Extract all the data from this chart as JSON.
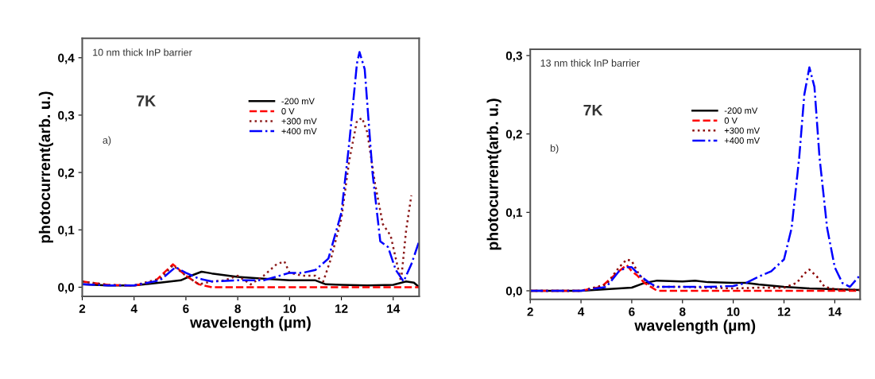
{
  "chart_data": [
    {
      "type": "line",
      "xlabel": "wavelength (µm)",
      "ylabel": "photocurrent(arb. u.)",
      "xlim": [
        2,
        15
      ],
      "ylim": [
        -0.016,
        0.434
      ],
      "xticks": [
        2,
        4,
        6,
        8,
        10,
        12,
        14
      ],
      "yticks": [
        {
          "value": 0.0,
          "label": "0,0"
        },
        {
          "value": 0.1,
          "label": "0,1"
        },
        {
          "value": 0.2,
          "label": "0,2"
        },
        {
          "value": 0.3,
          "label": "0,3"
        },
        {
          "value": 0.4,
          "label": "0,4"
        }
      ],
      "annotations": [
        "10 nm thick InP barrier",
        "7K",
        "a)"
      ],
      "legend": "top right",
      "grid": false,
      "series": [
        {
          "name": "-200 mV",
          "color": "#000000",
          "line_style": "solid",
          "x": [
            2,
            3,
            4,
            5,
            5.8,
            6.2,
            6.6,
            7,
            8,
            9,
            10,
            11,
            11.4,
            12,
            13,
            14,
            14.5,
            14.8,
            15
          ],
          "values": [
            0.005,
            0.003,
            0.003,
            0.008,
            0.012,
            0.02,
            0.027,
            0.024,
            0.018,
            0.015,
            0.012,
            0.012,
            0.005,
            0.004,
            0.003,
            0.004,
            0.01,
            0.008,
            0.0
          ]
        },
        {
          "name": "0 V",
          "color": "#ff0000",
          "line_style": "dashed",
          "x": [
            2,
            3,
            4,
            4.8,
            5.5,
            6,
            6.5,
            7,
            8,
            9,
            10,
            11,
            12,
            13,
            14,
            15
          ],
          "values": [
            0.01,
            0.004,
            0.003,
            0.01,
            0.04,
            0.02,
            0.005,
            0.0,
            0.0,
            0.0,
            0.0,
            0.0,
            0.0,
            0.0,
            0.0,
            0.0
          ]
        },
        {
          "name": "+300 mV",
          "color": "#8b1a1a",
          "line_style": "dotted",
          "x": [
            2,
            3,
            4,
            5,
            5.5,
            6,
            6.5,
            7,
            7.5,
            8,
            8.5,
            9,
            9.5,
            9.8,
            10,
            10.5,
            11,
            11.3,
            11.6,
            12,
            12.3,
            12.6,
            12.8,
            13,
            13.3,
            13.6,
            13.9,
            14.2,
            14.3,
            14.5,
            14.7
          ],
          "values": [
            0.01,
            0.004,
            0.003,
            0.015,
            0.038,
            0.02,
            0.005,
            0.01,
            0.012,
            0.02,
            0.005,
            0.02,
            0.04,
            0.045,
            0.025,
            0.02,
            0.02,
            0.01,
            0.05,
            0.12,
            0.22,
            0.29,
            0.295,
            0.27,
            0.18,
            0.11,
            0.09,
            0.03,
            0.01,
            0.1,
            0.16
          ]
        },
        {
          "name": "+400 mV",
          "color": "#0000ff",
          "line_style": "dashdot",
          "x": [
            2,
            3,
            4,
            5,
            5.6,
            6,
            6.5,
            7,
            8,
            9,
            10,
            10.5,
            11,
            11.5,
            12,
            12.3,
            12.6,
            12.7,
            12.9,
            13.2,
            13.5,
            13.8,
            14.1,
            14.4,
            14.7,
            15
          ],
          "values": [
            0.005,
            0.003,
            0.003,
            0.012,
            0.035,
            0.025,
            0.015,
            0.01,
            0.012,
            0.012,
            0.025,
            0.025,
            0.03,
            0.05,
            0.13,
            0.25,
            0.39,
            0.41,
            0.38,
            0.2,
            0.08,
            0.07,
            0.03,
            0.01,
            0.04,
            0.08
          ]
        }
      ]
    },
    {
      "type": "line",
      "xlabel": "wavelength (µm)",
      "ylabel": "photocurrent(arb. u.)",
      "xlim": [
        2,
        15
      ],
      "ylim": [
        -0.011,
        0.308
      ],
      "xticks": [
        2,
        4,
        6,
        8,
        10,
        12,
        14
      ],
      "yticks": [
        {
          "value": 0.0,
          "label": "0,0"
        },
        {
          "value": 0.1,
          "label": "0,1"
        },
        {
          "value": 0.2,
          "label": "0,2"
        },
        {
          "value": 0.3,
          "label": "0,3"
        }
      ],
      "annotations": [
        "13 nm thick InP barrier",
        "7K",
        "b)"
      ],
      "legend": "top right",
      "grid": false,
      "series": [
        {
          "name": "-200 mV",
          "color": "#000000",
          "line_style": "solid",
          "x": [
            2,
            4,
            5,
            6,
            6.5,
            7,
            8,
            8.5,
            9,
            10,
            10.5,
            11,
            12,
            13,
            14,
            15
          ],
          "values": [
            0.0,
            0.0,
            0.002,
            0.004,
            0.01,
            0.013,
            0.012,
            0.013,
            0.011,
            0.01,
            0.01,
            0.008,
            0.005,
            0.003,
            0.002,
            0.001
          ]
        },
        {
          "name": "0 V",
          "color": "#ff0000",
          "line_style": "dashed",
          "x": [
            2,
            4,
            4.8,
            5.5,
            5.8,
            6,
            6.2,
            6.5,
            7,
            8,
            9,
            10,
            11,
            12,
            13,
            14,
            15
          ],
          "values": [
            0.0,
            0.0,
            0.005,
            0.025,
            0.033,
            0.025,
            0.02,
            0.01,
            0.0,
            0.0,
            0.0,
            0.0,
            0.0,
            0.0,
            0.0,
            0.0,
            0.0
          ]
        },
        {
          "name": "+300 mV",
          "color": "#8b0000",
          "line_style": "dotted",
          "x": [
            2,
            4,
            5,
            5.5,
            5.8,
            6,
            6.3,
            6.7,
            7,
            8,
            9,
            10,
            11,
            12,
            12.5,
            12.8,
            13,
            13.3,
            13.6,
            14,
            15
          ],
          "values": [
            0.0,
            0.0,
            0.008,
            0.03,
            0.04,
            0.038,
            0.02,
            0.008,
            0.005,
            0.005,
            0.004,
            0.003,
            0.004,
            0.004,
            0.01,
            0.022,
            0.027,
            0.018,
            0.005,
            0.002,
            0.001
          ]
        },
        {
          "name": "+400 mV",
          "color": "#0000ff",
          "line_style": "dashdot",
          "x": [
            2,
            4,
            5,
            5.5,
            5.8,
            6,
            6.3,
            6.7,
            7,
            8,
            9,
            10,
            10.5,
            11,
            11.5,
            12,
            12.3,
            12.6,
            12.8,
            13,
            13.2,
            13.4,
            13.7,
            14,
            14.3,
            14.6,
            15
          ],
          "values": [
            0.0,
            0.0,
            0.005,
            0.025,
            0.03,
            0.03,
            0.02,
            0.01,
            0.005,
            0.005,
            0.005,
            0.006,
            0.01,
            0.018,
            0.025,
            0.04,
            0.08,
            0.17,
            0.25,
            0.285,
            0.26,
            0.17,
            0.08,
            0.03,
            0.01,
            0.005,
            0.02
          ]
        }
      ]
    }
  ]
}
